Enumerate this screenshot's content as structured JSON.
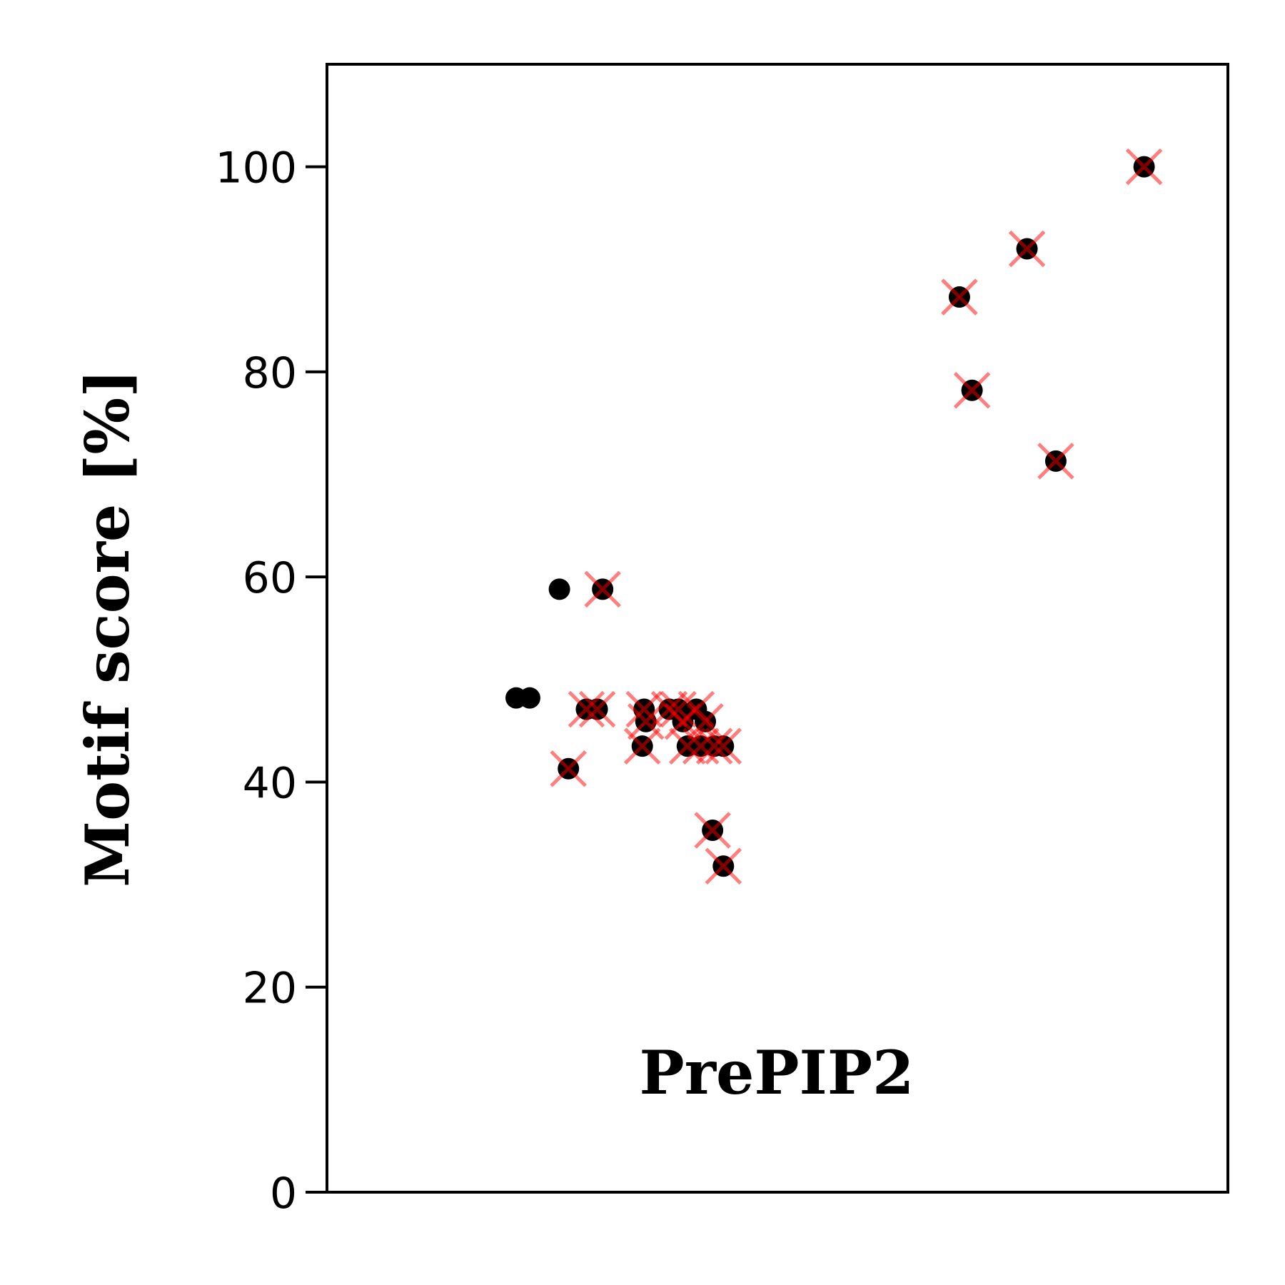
{
  "chart_data": {
    "type": "scatter",
    "title": "",
    "xlabel": "",
    "ylabel": "Motif score [%]",
    "ylim": [
      0,
      110
    ],
    "yticks": [
      0,
      20,
      40,
      60,
      80,
      100
    ],
    "xlim": [
      0,
      1
    ],
    "x_ticks_shown": false,
    "grid": false,
    "annotation": "PrePIP2",
    "series": [
      {
        "marker": "dot",
        "color": "#000000",
        "points": [
          {
            "x": 0.21,
            "y": 48.2
          },
          {
            "x": 0.225,
            "y": 48.2
          },
          {
            "x": 0.258,
            "y": 58.8
          },
          {
            "x": 0.268,
            "y": 41.3
          },
          {
            "x": 0.288,
            "y": 47.1
          },
          {
            "x": 0.3,
            "y": 47.1
          },
          {
            "x": 0.306,
            "y": 58.8
          },
          {
            "x": 0.35,
            "y": 43.5
          },
          {
            "x": 0.352,
            "y": 47.1
          },
          {
            "x": 0.354,
            "y": 45.9
          },
          {
            "x": 0.38,
            "y": 47.1
          },
          {
            "x": 0.39,
            "y": 47.1
          },
          {
            "x": 0.395,
            "y": 45.9
          },
          {
            "x": 0.4,
            "y": 43.5
          },
          {
            "x": 0.41,
            "y": 47.1
          },
          {
            "x": 0.415,
            "y": 43.5
          },
          {
            "x": 0.42,
            "y": 45.9
          },
          {
            "x": 0.43,
            "y": 43.5
          },
          {
            "x": 0.44,
            "y": 43.5
          },
          {
            "x": 0.428,
            "y": 35.3
          },
          {
            "x": 0.44,
            "y": 31.8
          },
          {
            "x": 0.702,
            "y": 87.3
          },
          {
            "x": 0.716,
            "y": 78.2
          },
          {
            "x": 0.777,
            "y": 92.0
          },
          {
            "x": 0.809,
            "y": 71.3
          },
          {
            "x": 0.907,
            "y": 100.0
          }
        ]
      },
      {
        "marker": "x",
        "color": "#ff0000",
        "points": [
          {
            "x": 0.268,
            "y": 41.3
          },
          {
            "x": 0.288,
            "y": 47.1
          },
          {
            "x": 0.3,
            "y": 47.1
          },
          {
            "x": 0.306,
            "y": 58.8
          },
          {
            "x": 0.35,
            "y": 43.5
          },
          {
            "x": 0.352,
            "y": 47.1
          },
          {
            "x": 0.354,
            "y": 45.9
          },
          {
            "x": 0.38,
            "y": 47.1
          },
          {
            "x": 0.39,
            "y": 47.1
          },
          {
            "x": 0.395,
            "y": 45.9
          },
          {
            "x": 0.4,
            "y": 43.5
          },
          {
            "x": 0.41,
            "y": 47.1
          },
          {
            "x": 0.415,
            "y": 43.5
          },
          {
            "x": 0.42,
            "y": 45.9
          },
          {
            "x": 0.43,
            "y": 43.5
          },
          {
            "x": 0.44,
            "y": 43.5
          },
          {
            "x": 0.428,
            "y": 35.3
          },
          {
            "x": 0.44,
            "y": 31.8
          },
          {
            "x": 0.702,
            "y": 87.3
          },
          {
            "x": 0.716,
            "y": 78.2
          },
          {
            "x": 0.777,
            "y": 92.0
          },
          {
            "x": 0.809,
            "y": 71.3
          },
          {
            "x": 0.907,
            "y": 100.0
          }
        ]
      }
    ]
  }
}
